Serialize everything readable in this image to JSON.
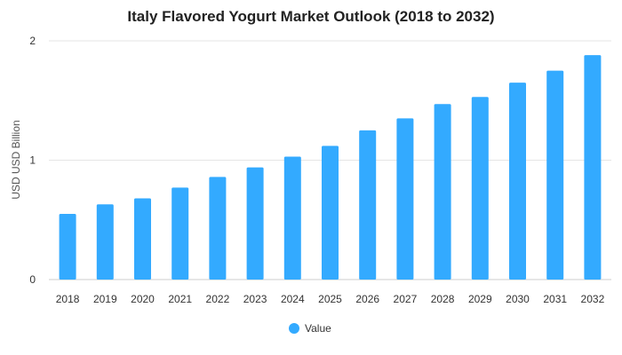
{
  "chart_data": {
    "type": "bar",
    "title": "Italy Flavored Yogurt Market Outlook (2018 to 2032)",
    "xlabel": "",
    "ylabel": "USD USD Billion",
    "categories": [
      "2018",
      "2019",
      "2020",
      "2021",
      "2022",
      "2023",
      "2024",
      "2025",
      "2026",
      "2027",
      "2028",
      "2029",
      "2030",
      "2031",
      "2032"
    ],
    "series": [
      {
        "name": "Value",
        "color": "#33aaff",
        "values": [
          0.55,
          0.63,
          0.68,
          0.77,
          0.86,
          0.94,
          1.03,
          1.12,
          1.25,
          1.35,
          1.47,
          1.53,
          1.65,
          1.75,
          1.88
        ]
      }
    ],
    "yticks": [
      "0",
      "1",
      "2"
    ],
    "ylim": [
      0,
      2
    ],
    "grid": true,
    "legend_position": "bottom"
  }
}
